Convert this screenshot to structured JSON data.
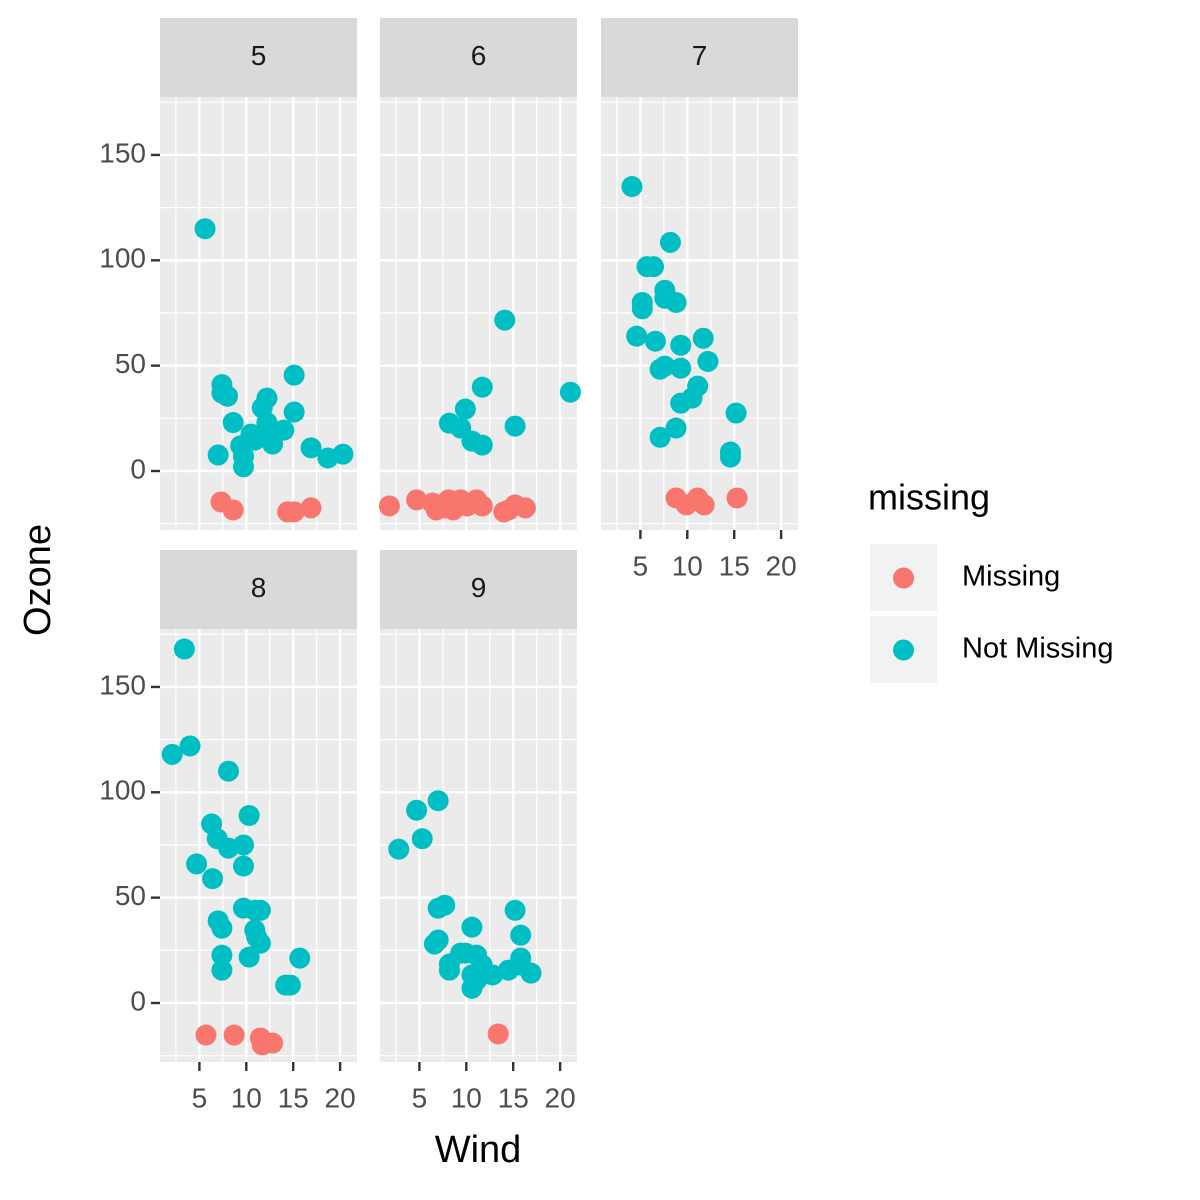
{
  "chart_data": {
    "type": "scatter",
    "x_label": "Wind",
    "y_label": "Ozone",
    "xlim": [
      0.8,
      21.8
    ],
    "ylim": [
      -28,
      177.5
    ],
    "xticks": [
      5,
      10,
      15,
      20
    ],
    "yticks": [
      0,
      50,
      100,
      150
    ],
    "x_minor_ticks": [
      2.5,
      7.5,
      12.5,
      17.5
    ],
    "y_minor_ticks": [
      -25,
      25,
      75,
      125,
      175
    ],
    "grid": true,
    "legend_title": "missing",
    "legend_position": "right",
    "series": [
      {
        "name": "Missing",
        "color": "#F8766D"
      },
      {
        "name": "Not Missing",
        "color": "#00BFC4"
      }
    ],
    "facets": [
      {
        "label": "5",
        "series": [
          {
            "x": [
              7.3,
              8.6,
              14.4,
              15.1,
              16.9
            ],
            "y": [
              -14.7,
              -18.5,
              -19.4,
              -19.4,
              -17.5
            ]
          },
          {
            "x": [
              5.6,
              7.0,
              7.4,
              7.4,
              8.0,
              8.6,
              9.4,
              9.7,
              9.7,
              9.7,
              10.5,
              10.9,
              11.3,
              11.7,
              12.2,
              12.2,
              12.2,
              12.8,
              14.0,
              15.1,
              15.1,
              16.9,
              18.7,
              20.3
            ],
            "y": [
              115,
              7.6,
              41,
              37,
              35.5,
              23,
              12,
              12,
              2,
              7,
              17.5,
              14.7,
              17,
              30,
              34.6,
              19.4,
              23,
              12.8,
              19.4,
              45.5,
              28,
              11,
              6.2,
              8
            ]
          }
        ]
      },
      {
        "label": "6",
        "series": [
          {
            "x": [
              1.8,
              4.7,
              6.4,
              6.8,
              7.7,
              8.1,
              8.6,
              9.4,
              10.1,
              11.1,
              11.7,
              14.0,
              14.5,
              15.2,
              16.3
            ],
            "y": [
              -16.6,
              -13.7,
              -15.2,
              -18.5,
              -17.5,
              -13.7,
              -18.5,
              -13.7,
              -16.6,
              -13.7,
              -16.6,
              -19.4,
              -18.5,
              -16.1,
              -17.5
            ]
          },
          {
            "x": [
              8.2,
              9.4,
              9.9,
              10.6,
              11.7,
              11.7,
              14.1,
              15.2,
              21.1
            ],
            "y": [
              22.7,
              20.4,
              29.4,
              14.2,
              12.3,
              39.8,
              71.6,
              21.3,
              37.4
            ]
          }
        ]
      },
      {
        "label": "7",
        "series": [
          {
            "x": [
              8.8,
              9.9,
              11.1,
              11.8,
              15.3
            ],
            "y": [
              -12.8,
              -16.1,
              -12.8,
              -16.1,
              -12.8
            ]
          },
          {
            "x": [
              4.1,
              4.6,
              5.2,
              5.2,
              5.7,
              6.4,
              6.6,
              7.1,
              7.6,
              7.6,
              7.6,
              8.2,
              8.8,
              8.8,
              9.3,
              9.3,
              9.3,
              10.5,
              11.1,
              11.7,
              12.2,
              15.2,
              14.6,
              14.6,
              7.1
            ],
            "y": [
              135,
              64,
              80,
              77,
              97,
              97,
              61.6,
              48.3,
              49.8,
              85.8,
              82,
              108.5,
              80,
              20.4,
              59.7,
              48.8,
              32.2,
              34.6,
              40.3,
              63,
              52,
              27.5,
              9,
              6.6,
              16
            ]
          }
        ]
      },
      {
        "label": "8",
        "series": [
          {
            "x": [
              5.7,
              8.7,
              11.5,
              11.7,
              12.8
            ],
            "y": [
              -15.2,
              -15.2,
              -16.6,
              -19.9,
              -19
            ]
          },
          {
            "x": [
              3.4,
              2.1,
              4.0,
              4.7,
              6.3,
              6.4,
              6.9,
              7.0,
              7.4,
              7.4,
              7.4,
              8.1,
              8.1,
              9.7,
              9.7,
              9.7,
              10.3,
              10.3,
              10.9,
              11.1,
              11.5,
              11.5,
              10.9,
              14.2,
              14.7,
              15.7
            ],
            "y": [
              168,
              118,
              122,
              66,
              85,
              59,
              78,
              39,
              35.5,
              22.7,
              15.6,
              73.5,
              110,
              75,
              65,
              45,
              89,
              21.8,
              44,
              31.3,
              44,
              28.4,
              34.6,
              8.5,
              8.5,
              21.3
            ]
          }
        ]
      },
      {
        "label": "9",
        "series": [
          {
            "x": [
              13.4
            ],
            "y": [
              -14.7
            ]
          },
          {
            "x": [
              2.8,
              4.7,
              5.3,
              7.0,
              6.6,
              7.0,
              7.0,
              7.7,
              8.2,
              8.2,
              9.4,
              9.9,
              10.6,
              10.6,
              10.6,
              11.1,
              11.1,
              11.7,
              12.8,
              14.5,
              15.2,
              15.8,
              15.8,
              15.8,
              16.9
            ],
            "y": [
              73,
              91.5,
              78,
              96,
              28,
              29.9,
              45,
              46.4,
              18.5,
              15.6,
              23.7,
              23.7,
              36,
              7,
              13.3,
              22.7,
              10.9,
              18,
              13.3,
              15.6,
              44,
              32.2,
              21.3,
              18,
              14.2
            ]
          }
        ]
      }
    ]
  }
}
